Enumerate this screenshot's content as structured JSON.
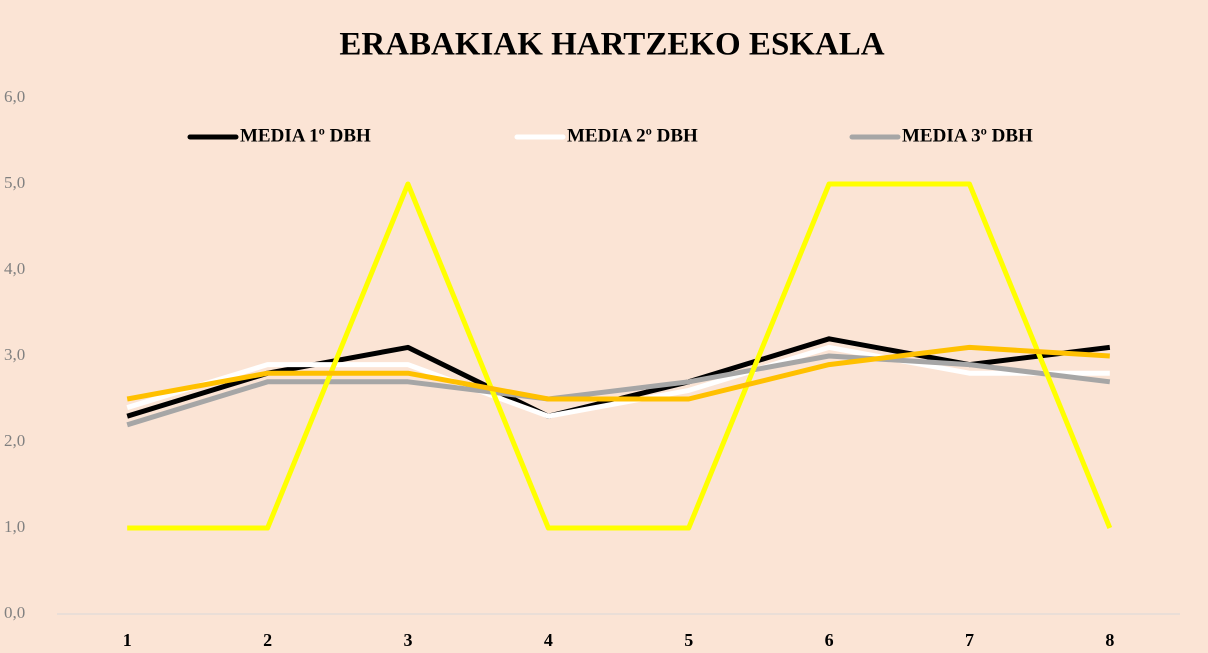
{
  "chart_data": {
    "type": "line",
    "title": "ERABAKIAK HARTZEKO ESKALA",
    "categories": [
      "1",
      "2",
      "3",
      "4",
      "5",
      "6",
      "7",
      "8"
    ],
    "series": [
      {
        "name": "MEDIA 1º DBH",
        "color": "#000000",
        "values": [
          2.3,
          2.8,
          3.1,
          2.3,
          2.7,
          3.2,
          2.9,
          3.1
        ]
      },
      {
        "name": "MEDIA 2º DBH",
        "color": "#ffffff",
        "values": [
          2.4,
          2.9,
          2.9,
          2.3,
          2.6,
          3.1,
          2.8,
          2.8
        ]
      },
      {
        "name": "MEDIA 3º DBH",
        "color": "#a6a6a6",
        "values": [
          2.2,
          2.7,
          2.7,
          2.5,
          2.7,
          3.0,
          2.9,
          2.7
        ]
      },
      {
        "color": "#ffff00",
        "values": [
          1,
          1,
          5,
          1,
          1,
          5,
          5,
          1
        ]
      },
      {
        "color": "#ffc000",
        "values": [
          2.5,
          2.8,
          2.8,
          2.5,
          2.5,
          2.9,
          3.1,
          3.0
        ]
      }
    ],
    "ylim": [
      0,
      6
    ],
    "yticks": [
      {
        "value": 0,
        "label": "0,0"
      },
      {
        "value": 1,
        "label": "1,0"
      },
      {
        "value": 2,
        "label": "2,0"
      },
      {
        "value": 3,
        "label": "3,0"
      },
      {
        "value": 4,
        "label": "4,0"
      },
      {
        "value": 5,
        "label": "5,0"
      },
      {
        "value": 6,
        "label": "6,0"
      }
    ],
    "legend": "top",
    "grid": false
  }
}
